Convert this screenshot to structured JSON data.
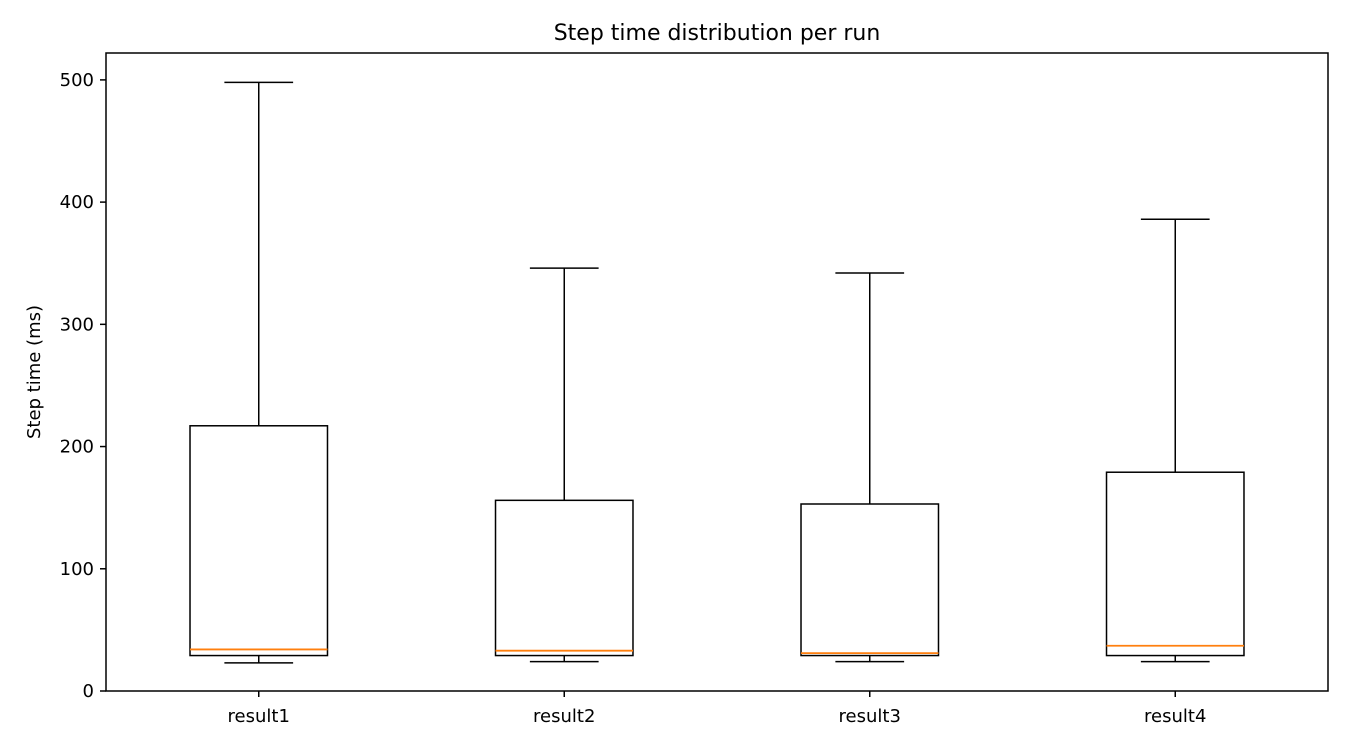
{
  "chart_data": {
    "type": "box",
    "title": "Step time distribution per run",
    "xlabel": "",
    "ylabel": "Step time (ms)",
    "ylim": [
      0,
      522
    ],
    "yticks": [
      0,
      100,
      200,
      300,
      400,
      500
    ],
    "grid": false,
    "categories": [
      "result1",
      "result2",
      "result3",
      "result4"
    ],
    "boxes": [
      {
        "label": "result1",
        "whisker_low": 23,
        "q1": 29,
        "median": 34,
        "q3": 217,
        "whisker_high": 498
      },
      {
        "label": "result2",
        "whisker_low": 24,
        "q1": 29,
        "median": 33,
        "q3": 156,
        "whisker_high": 346
      },
      {
        "label": "result3",
        "whisker_low": 24,
        "q1": 29,
        "median": 31,
        "q3": 153,
        "whisker_high": 342
      },
      {
        "label": "result4",
        "whisker_low": 24,
        "q1": 29,
        "median": 37,
        "q3": 179,
        "whisker_high": 386
      }
    ],
    "colors": {
      "box": "#000000",
      "median": "#ff7f0e",
      "axes": "#000000"
    }
  }
}
